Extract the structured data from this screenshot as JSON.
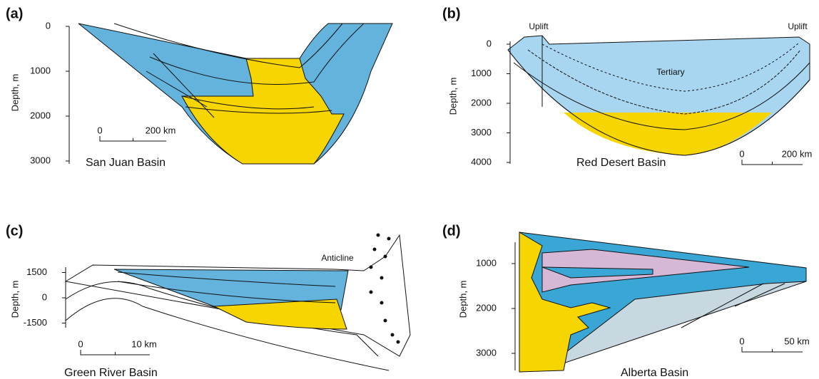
{
  "panels": [
    {
      "label": "(a)",
      "axis_label": "Depth, m",
      "ticks": [
        0,
        1000,
        2000,
        3000
      ],
      "scale_bar": {
        "start": "0",
        "end": "200 km"
      },
      "title": "San Juan Basin"
    },
    {
      "label": "(b)",
      "axis_label": "Depth, m",
      "ticks": [
        0,
        1000,
        2000,
        3000,
        4000
      ],
      "scale_bar": {
        "start": "0",
        "end": "200 km"
      },
      "title": "Red Desert Basin",
      "annotations": [
        "Uplift",
        "Uplift",
        "Tertiary"
      ]
    },
    {
      "label": "(c)",
      "axis_label": "Depth, m",
      "ticks": [
        1500,
        0,
        -1500
      ],
      "scale_bar": {
        "start": "0",
        "end": "10 km"
      },
      "title": "Green River Basin",
      "annotations": [
        "Anticline"
      ]
    },
    {
      "label": "(d)",
      "axis_label": "Depth, m",
      "ticks": [
        1000,
        2000,
        3000
      ],
      "scale_bar": {
        "start": "0",
        "end": "50 km"
      },
      "title": "Alberta Basin"
    }
  ]
}
